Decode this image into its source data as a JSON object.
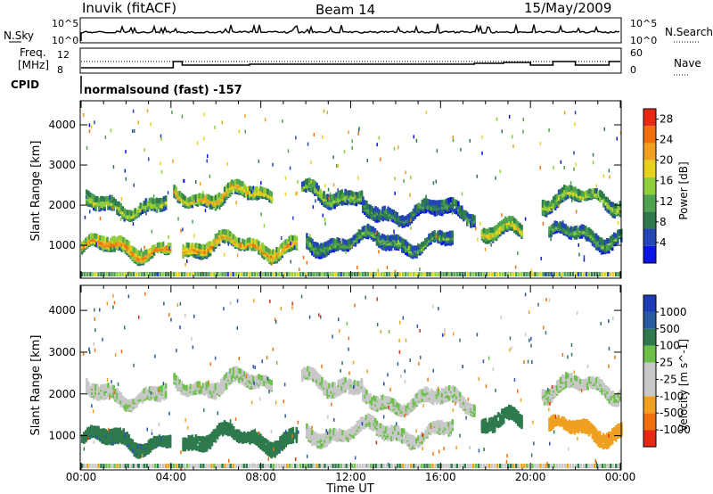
{
  "header": {
    "station": "Inuvik (fitACF)",
    "beam": "Beam 14",
    "date": "15/May/2009"
  },
  "top_panels": {
    "nsky_label": "N.Sky",
    "nsky_ticks": [
      "10^5",
      "10^0"
    ],
    "nsearch_label": "N.Search",
    "freq_label_1": "Freq.",
    "freq_label_2": "[MHz]",
    "freq_ticks": [
      "12",
      "8"
    ],
    "nave_ticks": [
      "60",
      "0"
    ],
    "nave_label": "Nave",
    "cpid_label": "CPID",
    "cpid_text": "normalsound (fast) -157"
  },
  "colors": {
    "power_scale": [
      "#0a14e6",
      "#2346b4",
      "#2e7a4d",
      "#4fa34f",
      "#8fcf3c",
      "#e6d21e",
      "#f0a020",
      "#f07010",
      "#e62814"
    ],
    "velocity_scale": [
      "#1e3cb4",
      "#2a5aa0",
      "#2e7a4d",
      "#6cc04a",
      "#c8c8c8",
      "#c8c8c8",
      "#f0a020",
      "#f07010",
      "#e62814"
    ]
  },
  "chart_data": [
    {
      "type": "heatmap",
      "title": "",
      "xlabel": "",
      "ylabel": "Slant Range [km]",
      "x_ticks": [
        "00:00",
        "04:00",
        "08:00",
        "12:00",
        "16:00",
        "20:00",
        "00:00"
      ],
      "y_ticks": [
        "1000",
        "2000",
        "3000",
        "4000"
      ],
      "xlim": [
        0,
        24
      ],
      "ylim": [
        180,
        4600
      ],
      "colorbar": {
        "label": "Power [dB]",
        "ticks": [
          "28",
          "24",
          "20",
          "16",
          "12",
          "8",
          "4"
        ],
        "range": [
          0,
          30
        ]
      },
      "bands": [
        {
          "t0": 0.0,
          "t1": 4.0,
          "range": 950,
          "level": 24
        },
        {
          "t0": 0.2,
          "t1": 3.8,
          "range": 2000,
          "level": 16
        },
        {
          "t0": 4.1,
          "t1": 8.5,
          "range": 2250,
          "level": 20
        },
        {
          "t0": 4.5,
          "t1": 9.6,
          "range": 1000,
          "level": 22
        },
        {
          "t0": 9.8,
          "t1": 12.5,
          "range": 2300,
          "level": 14
        },
        {
          "t0": 10.0,
          "t1": 16.5,
          "range": 1100,
          "level": 12
        },
        {
          "t0": 12.5,
          "t1": 17.5,
          "range": 1850,
          "level": 10
        },
        {
          "t0": 17.8,
          "t1": 19.6,
          "range": 1300,
          "level": 18
        },
        {
          "t0": 20.5,
          "t1": 24.0,
          "range": 2150,
          "level": 16
        },
        {
          "t0": 20.8,
          "t1": 24.0,
          "range": 1250,
          "level": 12
        }
      ]
    },
    {
      "type": "heatmap",
      "title": "",
      "xlabel": "Time UT",
      "ylabel": "Slant Range [km]",
      "x_ticks": [
        "00:00",
        "04:00",
        "08:00",
        "12:00",
        "16:00",
        "20:00",
        "00:00"
      ],
      "y_ticks": [
        "1000",
        "2000",
        "3000",
        "4000"
      ],
      "xlim": [
        0,
        24
      ],
      "ylim": [
        180,
        4600
      ],
      "colorbar": {
        "label": "Velocity [m s^-1]",
        "ticks": [
          "1000",
          "500",
          "100",
          "25",
          "-25",
          "-100",
          "-500",
          "-1000"
        ],
        "range": [
          -1000,
          1000
        ]
      },
      "bands": [
        {
          "t0": 0.0,
          "t1": 4.0,
          "range": 900,
          "level": 250
        },
        {
          "t0": 0.2,
          "t1": 3.8,
          "range": 2000,
          "level": 0
        },
        {
          "t0": 4.1,
          "t1": 8.5,
          "range": 2250,
          "level": 0
        },
        {
          "t0": 4.5,
          "t1": 9.6,
          "range": 950,
          "level": 150
        },
        {
          "t0": 9.8,
          "t1": 12.5,
          "range": 2300,
          "level": 0
        },
        {
          "t0": 10.0,
          "t1": 16.5,
          "range": 1100,
          "level": 0
        },
        {
          "t0": 12.5,
          "t1": 17.5,
          "range": 1850,
          "level": 0
        },
        {
          "t0": 17.8,
          "t1": 19.6,
          "range": 1300,
          "level": 200
        },
        {
          "t0": 20.5,
          "t1": 24.0,
          "range": 2150,
          "level": 0
        },
        {
          "t0": 20.8,
          "t1": 24.0,
          "range": 1150,
          "level": -300
        }
      ]
    }
  ]
}
